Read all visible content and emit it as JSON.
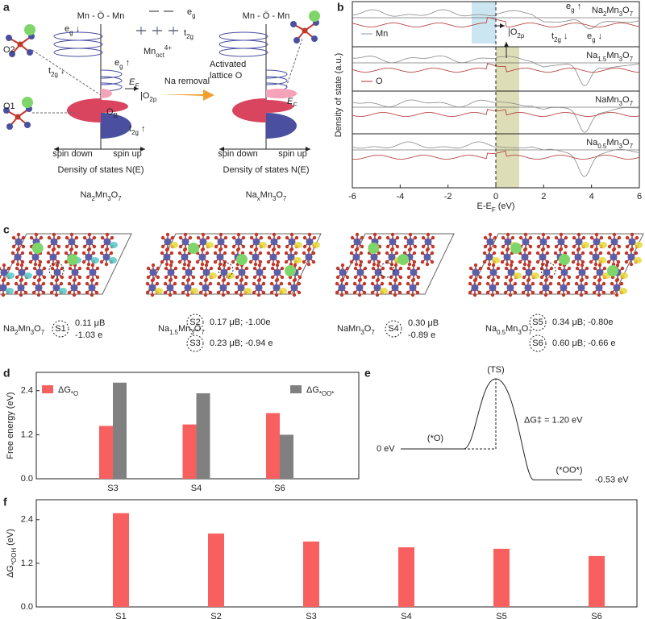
{
  "panel_labels": [
    "a",
    "b",
    "c",
    "d",
    "e",
    "f"
  ],
  "panel_a": {
    "bond_left": "Mn - Ö - Mn",
    "bond_right": "Mn - Ö - Mn",
    "eg_level": [
      "e",
      "g"
    ],
    "t2g_level": [
      "t",
      "2g"
    ],
    "mn_oct": [
      "Mn",
      "oct",
      "4+"
    ],
    "eg_down": [
      "e",
      "g",
      " ↓"
    ],
    "t2g_down": [
      "t",
      "2g",
      " ↓"
    ],
    "eg_up": [
      "e",
      "g",
      " ↑"
    ],
    "ef_left": [
      "E",
      "F"
    ],
    "o2p": [
      "|O",
      "2p"
    ],
    "ob": [
      "O",
      "B"
    ],
    "t2g_up": [
      "t",
      "2g",
      " ↑"
    ],
    "o2": "O2",
    "o1": "O1",
    "na_removal": "Na removal",
    "activated": [
      "Activated",
      "lattice O"
    ],
    "ef_right": [
      "E",
      "F"
    ],
    "left": {
      "spin_down": "spin down",
      "spin_up": "spin up",
      "axis": "Density of states N(E)",
      "formula": [
        "Na",
        "2",
        "Mn",
        "3",
        "O",
        "7"
      ]
    },
    "right": {
      "spin_down": "spin down",
      "spin_up": "spin up",
      "axis": "Density of states N(E)",
      "formula": [
        "Na",
        "x",
        "Mn",
        "3",
        "O",
        "7"
      ]
    }
  },
  "panel_b": {
    "ylabel": "Density of state (a.u.)",
    "xlabel": [
      "E-E",
      "F",
      " (eV)"
    ],
    "xlim": [
      -6,
      6
    ],
    "xticks": [
      -6,
      -4,
      -2,
      0,
      2,
      4,
      6
    ],
    "subpanels": [
      [
        "Na",
        "2",
        "Mn",
        "3",
        "O",
        "7"
      ],
      [
        "Na",
        "1.5",
        "Mn",
        "3",
        "O",
        "7"
      ],
      [
        "NaMn",
        "3",
        "O",
        "7"
      ],
      [
        "Na",
        "0.5",
        "Mn",
        "3",
        "O",
        "7"
      ]
    ],
    "legend": [
      "Mn",
      "O"
    ],
    "eg_up": [
      "e",
      "g",
      " ↑"
    ],
    "t2g_down": [
      "t",
      "2g",
      " ↓"
    ],
    "eg_down": [
      "e",
      "g",
      " ↓"
    ],
    "o2p": [
      "|O",
      "2p"
    ]
  },
  "panel_c": {
    "structures": [
      {
        "formula": [
          "Na",
          "2",
          "Mn",
          "3",
          "O",
          "7"
        ],
        "sites": [
          {
            "name": "S1",
            "info": [
              "0.11 μB",
              "-1.03 e"
            ]
          }
        ]
      },
      {
        "formula": [
          "Na",
          "1.5",
          "Mn",
          "3",
          "O",
          "7"
        ],
        "sites": [
          {
            "name": "S2",
            "info": [
              "0.17 μB; -1.00e"
            ]
          },
          {
            "name": "S3",
            "info": [
              "0.23 μB; -0.94 e"
            ]
          }
        ]
      },
      {
        "formula": [
          "NaMn",
          "3",
          "O",
          "7"
        ],
        "sites": [
          {
            "name": "S4",
            "info": [
              "0.30 μB",
              "-0.89 e"
            ]
          }
        ]
      },
      {
        "formula": [
          "Na",
          "0.5",
          "Mn",
          "3",
          "O",
          "7"
        ],
        "sites": [
          {
            "name": "S5",
            "info": [
              "0.34 μB; -0.80e"
            ]
          },
          {
            "name": "S6",
            "info": [
              "0.60 μB; -0.66 e"
            ]
          }
        ]
      }
    ]
  },
  "chart_data": [
    {
      "type": "bar",
      "ylabel": "Free energy (eV)",
      "categories": [
        "S3",
        "S4",
        "S6"
      ],
      "series": [
        {
          "name": [
            "ΔG",
            "*O"
          ],
          "color": "#f8605f",
          "values": [
            1.44,
            1.48,
            1.79
          ]
        },
        {
          "name": [
            "ΔG",
            "*OO*"
          ],
          "color": "#808080",
          "values": [
            2.62,
            2.33,
            1.2
          ]
        }
      ],
      "ylim": [
        0,
        2.9
      ],
      "yticks": [
        {
          "value": 0,
          "label": "0.0"
        },
        1.2,
        2.4
      ]
    },
    {
      "type": "energy_profile",
      "states": [
        "(*O)",
        "(TS)",
        "(*OO*)"
      ],
      "values": [
        0,
        1.2,
        -0.53
      ],
      "value_labels": [
        "0 eV",
        "ΔG‡ = 1.20 eV",
        "-0.53 eV"
      ]
    },
    {
      "type": "bar",
      "ylabel": [
        "ΔG",
        "*OOH",
        " (eV)"
      ],
      "categories": [
        "S1",
        "S2",
        "S3",
        "S4",
        "S5",
        "S6"
      ],
      "values": [
        2.58,
        2.02,
        1.8,
        1.64,
        1.6,
        1.4
      ],
      "color": "#f8605f",
      "ylim": [
        0,
        2.95
      ],
      "yticks": [
        {
          "value": 0,
          "label": "0.0"
        },
        1.2,
        2.4
      ]
    }
  ]
}
